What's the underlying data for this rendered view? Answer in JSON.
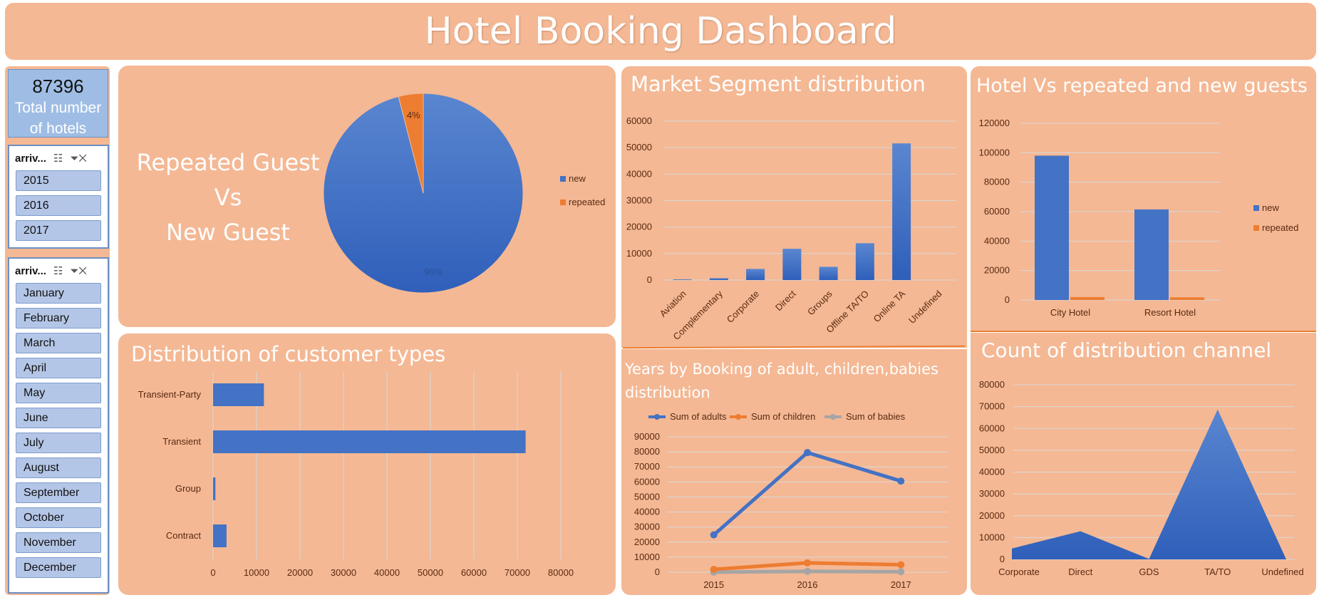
{
  "dashboard": {
    "title": "Hotel Booking Dashboard"
  },
  "kpi": {
    "value": "87396",
    "label_line1": "Total number",
    "label_line2": "of hotels"
  },
  "slicer_year": {
    "header": "arriv...",
    "items": [
      "2015",
      "2016",
      "2017"
    ]
  },
  "slicer_month": {
    "header": "arriv...",
    "items": [
      "January",
      "February",
      "March",
      "April",
      "May",
      "June",
      "July",
      "August",
      "September",
      "October",
      "November",
      "December"
    ]
  },
  "colors": {
    "panel": "#f4b894",
    "blue": "#4472c4",
    "orange": "#ed7d31",
    "gray": "#a5a5a5",
    "slicer_button": "#b4c6e7"
  },
  "icons": {
    "multi_select": "multi-select-icon",
    "clear_filter": "clear-filter-icon"
  },
  "chart_data": [
    {
      "id": "repeated_vs_new",
      "type": "pie",
      "title_lines": [
        "Repeated Guest",
        "Vs",
        "New Guest"
      ],
      "slices": [
        {
          "name": "new",
          "value": 96,
          "label": "96%"
        },
        {
          "name": "repeated",
          "value": 4,
          "label": "4%"
        }
      ],
      "legend": "right"
    },
    {
      "id": "market_segment",
      "type": "bar",
      "title": "Market Segment distribution",
      "categories": [
        "Aviation",
        "Complementary",
        "Corporate",
        "Direct",
        "Groups",
        "Offline TA/TO",
        "Online TA",
        "Undefined"
      ],
      "values": [
        230,
        700,
        4200,
        11800,
        5000,
        13900,
        51600,
        2
      ],
      "ylim": [
        0,
        60000
      ],
      "yticks": [
        0,
        10000,
        20000,
        30000,
        40000,
        50000,
        60000
      ],
      "grid": true
    },
    {
      "id": "hotel_repeated_new",
      "type": "bar",
      "title": "Hotel Vs repeated and new guests",
      "categories": [
        "City Hotel",
        "Resort Hotel"
      ],
      "series": [
        {
          "name": "new",
          "values": [
            98000,
            61500
          ]
        },
        {
          "name": "repeated",
          "values": [
            2000,
            1800
          ]
        }
      ],
      "ylim": [
        0,
        120000
      ],
      "yticks": [
        0,
        20000,
        40000,
        60000,
        80000,
        100000,
        120000
      ],
      "legend": "right",
      "grid": true
    },
    {
      "id": "customer_types",
      "type": "bar",
      "orientation": "horizontal",
      "title": "Distribution of customer types",
      "categories": [
        "Transient-Party",
        "Transient",
        "Group",
        "Contract"
      ],
      "values": [
        11700,
        71900,
        540,
        3100
      ],
      "xlim": [
        0,
        80000
      ],
      "xticks": [
        0,
        10000,
        20000,
        30000,
        40000,
        50000,
        60000,
        70000,
        80000
      ],
      "grid": true
    },
    {
      "id": "years_booking",
      "type": "line",
      "title": "Years by Booking of adult, children,babies distribution",
      "x": [
        "2015",
        "2016",
        "2017"
      ],
      "series": [
        {
          "name": "Sum of adults",
          "values": [
            24800,
            79500,
            60600
          ]
        },
        {
          "name": "Sum of children",
          "values": [
            1900,
            6200,
            5000
          ]
        },
        {
          "name": "Sum of babies",
          "values": [
            80,
            550,
            300
          ]
        }
      ],
      "ylim": [
        0,
        90000
      ],
      "yticks": [
        0,
        10000,
        20000,
        30000,
        40000,
        50000,
        60000,
        70000,
        80000,
        90000
      ],
      "legend": "top",
      "grid": true
    },
    {
      "id": "distribution_channel",
      "type": "area",
      "title": "Count of distribution channel",
      "categories": [
        "Corporate",
        "Direct",
        "GDS",
        "TA/TO",
        "Undefined"
      ],
      "values": [
        5000,
        12900,
        200,
        68700,
        5
      ],
      "ylim": [
        0,
        80000
      ],
      "yticks": [
        0,
        10000,
        20000,
        30000,
        40000,
        50000,
        60000,
        70000,
        80000
      ],
      "grid": true
    }
  ]
}
